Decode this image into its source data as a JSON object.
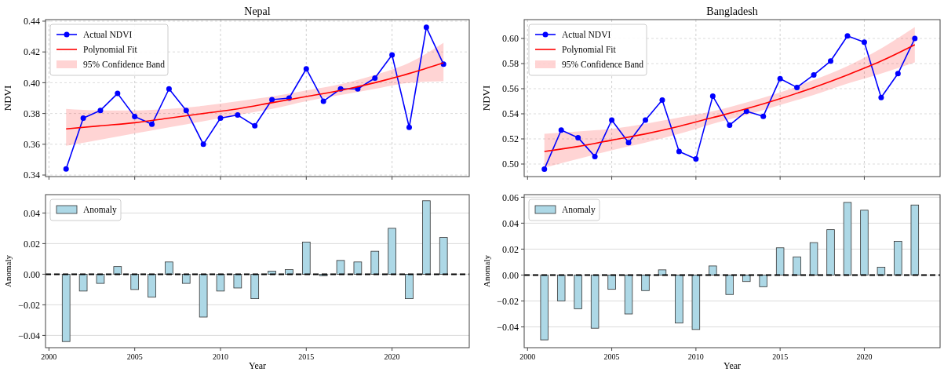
{
  "chart_data": [
    {
      "type": "line",
      "title": "Nepal",
      "annotations": [
        "95% Confidence Band"
      ],
      "ylabel": "NDVI",
      "xlim": [
        1999.8,
        2024.5
      ],
      "xticks": [
        2000,
        2005,
        2010,
        2015,
        2020
      ],
      "ylim": [
        0.339,
        0.441
      ],
      "yticks": [
        0.34,
        0.36,
        0.38,
        {
          "value": 0.4,
          "label": "0.40"
        },
        0.42,
        0.44
      ],
      "grid": true,
      "legend": "top left",
      "tick_labels": "y",
      "x": [
        2001,
        2002,
        2003,
        2004,
        2005,
        2006,
        2007,
        2008,
        2009,
        2010,
        2011,
        2012,
        2013,
        2014,
        2015,
        2016,
        2017,
        2018,
        2019,
        2020,
        2021,
        2022,
        2023
      ],
      "series": [
        {
          "type": "line",
          "name": "Actual NDVI",
          "color": "#0000ff",
          "marker": "circle",
          "values": [
            0.344,
            0.377,
            0.382,
            0.393,
            0.378,
            0.373,
            0.396,
            0.382,
            0.36,
            0.377,
            0.379,
            0.372,
            0.389,
            0.39,
            0.409,
            0.388,
            0.396,
            0.396,
            0.403,
            0.418,
            0.371,
            0.436,
            0.412
          ]
        },
        {
          "type": "line",
          "name": "Polynomial Fit",
          "color": "#ff0000",
          "marker": "none",
          "x": [
            2001,
            2003,
            2005,
            2007,
            2009,
            2011,
            2013,
            2015,
            2017,
            2019,
            2021,
            2023
          ],
          "values": [
            0.37,
            0.372,
            0.374,
            0.377,
            0.38,
            0.383,
            0.387,
            0.391,
            0.395,
            0.4,
            0.406,
            0.413
          ],
          "lower": [
            0.359,
            0.363,
            0.367,
            0.371,
            0.375,
            0.379,
            0.383,
            0.388,
            0.392,
            0.396,
            0.4,
            0.401
          ],
          "upper": [
            0.383,
            0.382,
            0.382,
            0.383,
            0.385,
            0.388,
            0.391,
            0.395,
            0.399,
            0.405,
            0.413,
            0.426
          ]
        }
      ]
    },
    {
      "type": "line",
      "title": "Bangladesh",
      "annotations": [
        "95% Confidence Band"
      ],
      "ylabel": "NDVI",
      "xlim": [
        1999.8,
        2024.5
      ],
      "xticks": [
        2000,
        2005,
        2010,
        2015,
        2020
      ],
      "ylim": [
        0.49,
        0.615
      ],
      "yticks": [
        {
          "value": 0.5,
          "label": "0.50"
        },
        0.52,
        0.54,
        0.56,
        0.58,
        {
          "value": 0.6,
          "label": "0.60"
        }
      ],
      "grid": true,
      "legend": "top left",
      "tick_labels": "y",
      "x": [
        2001,
        2002,
        2003,
        2004,
        2005,
        2006,
        2007,
        2008,
        2009,
        2010,
        2011,
        2012,
        2013,
        2014,
        2015,
        2016,
        2017,
        2018,
        2019,
        2020,
        2021,
        2022,
        2023
      ],
      "series": [
        {
          "type": "line",
          "name": "Actual NDVI",
          "color": "#0000ff",
          "marker": "circle",
          "values": [
            0.496,
            0.527,
            0.521,
            0.506,
            0.535,
            0.517,
            0.535,
            0.551,
            0.51,
            0.504,
            0.554,
            0.531,
            0.542,
            0.538,
            0.568,
            0.561,
            0.571,
            0.582,
            0.602,
            0.597,
            0.553,
            0.572,
            0.6
          ]
        },
        {
          "type": "line",
          "name": "Polynomial Fit",
          "color": "#ff0000",
          "marker": "none",
          "x": [
            2001,
            2003,
            2005,
            2007,
            2009,
            2011,
            2013,
            2015,
            2017,
            2019,
            2021,
            2023
          ],
          "values": [
            0.51,
            0.514,
            0.519,
            0.524,
            0.53,
            0.537,
            0.544,
            0.552,
            0.561,
            0.571,
            0.582,
            0.595
          ],
          "lower": [
            0.497,
            0.504,
            0.511,
            0.517,
            0.524,
            0.532,
            0.539,
            0.547,
            0.555,
            0.564,
            0.572,
            0.581
          ],
          "upper": [
            0.524,
            0.526,
            0.528,
            0.532,
            0.537,
            0.542,
            0.549,
            0.557,
            0.567,
            0.578,
            0.592,
            0.609
          ]
        }
      ]
    },
    {
      "type": "bar",
      "xlabel": "Year",
      "ylabel": "Anomaly",
      "xlim": [
        1999.8,
        2024.5
      ],
      "xticks": [
        2000,
        2005,
        2010,
        2015,
        2020
      ],
      "ylim": [
        -0.048,
        0.052
      ],
      "yticks": [
        {
          "value": -0.04,
          "label": "−0.04"
        },
        {
          "value": -0.02,
          "label": "−0.02"
        },
        {
          "value": 0,
          "label": "0.00"
        },
        {
          "value": 0.02,
          "label": "0.02"
        },
        {
          "value": 0.04,
          "label": "0.04"
        }
      ],
      "grid": "y",
      "legend": "top left",
      "ref_lines": [
        {
          "axis": "y",
          "value": 0,
          "color": "#000000",
          "line_style": "dashed"
        }
      ],
      "x": [
        2001,
        2002,
        2003,
        2004,
        2005,
        2006,
        2007,
        2008,
        2009,
        2010,
        2011,
        2012,
        2013,
        2014,
        2015,
        2016,
        2017,
        2018,
        2019,
        2020,
        2021,
        2022,
        2023
      ],
      "series": [
        {
          "name": "Anomaly",
          "color": "#add8e6",
          "values": [
            -0.044,
            -0.011,
            -0.006,
            0.005,
            -0.01,
            -0.015,
            0.008,
            -0.006,
            -0.028,
            -0.011,
            -0.009,
            -0.016,
            0.002,
            0.003,
            0.021,
            -0.001,
            0.009,
            0.008,
            0.015,
            0.03,
            -0.016,
            0.048,
            0.024
          ]
        }
      ]
    },
    {
      "type": "bar",
      "xlabel": "Year",
      "ylabel": "Anomaly",
      "xlim": [
        1999.8,
        2024.5
      ],
      "xticks": [
        2000,
        2005,
        2010,
        2015,
        2020
      ],
      "ylim": [
        -0.056,
        0.062
      ],
      "yticks": [
        {
          "value": -0.04,
          "label": "−0.04"
        },
        {
          "value": -0.02,
          "label": "−0.02"
        },
        {
          "value": 0,
          "label": "0.00"
        },
        {
          "value": 0.02,
          "label": "0.02"
        },
        {
          "value": 0.04,
          "label": "0.04"
        },
        {
          "value": 0.06,
          "label": "0.06"
        }
      ],
      "grid": "y",
      "legend": "top left",
      "ref_lines": [
        {
          "axis": "y",
          "value": 0,
          "color": "#000000",
          "line_style": "dashed"
        }
      ],
      "x": [
        2001,
        2002,
        2003,
        2004,
        2005,
        2006,
        2007,
        2008,
        2009,
        2010,
        2011,
        2012,
        2013,
        2014,
        2015,
        2016,
        2017,
        2018,
        2019,
        2020,
        2021,
        2022,
        2023
      ],
      "series": [
        {
          "name": "Anomaly",
          "color": "#add8e6",
          "values": [
            -0.05,
            -0.02,
            -0.026,
            -0.041,
            -0.011,
            -0.03,
            -0.012,
            0.004,
            -0.037,
            -0.042,
            0.007,
            -0.015,
            -0.005,
            -0.009,
            0.021,
            0.014,
            0.025,
            0.035,
            0.056,
            0.05,
            0.006,
            0.026,
            0.054
          ]
        }
      ]
    }
  ]
}
